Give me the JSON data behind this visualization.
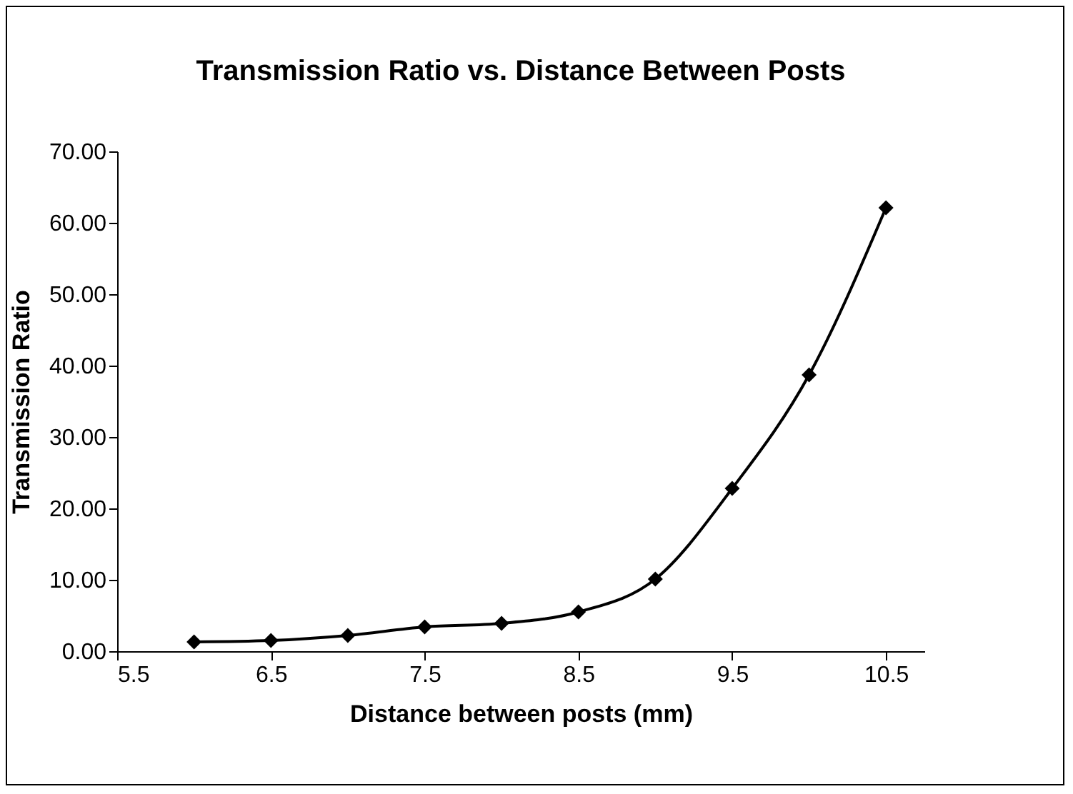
{
  "chart_data": {
    "type": "line",
    "title": "Transmission Ratio vs. Distance Between Posts",
    "xlabel": "Distance between posts (mm)",
    "ylabel": "Transmission Ratio",
    "x": [
      6,
      6.5,
      7,
      7.5,
      8,
      8.5,
      9,
      9.5,
      10,
      10.5
    ],
    "series": [
      {
        "color": "#000000",
        "values": [
          1.3,
          1.5,
          2.2,
          3.4,
          3.9,
          5.5,
          10.1,
          22.8,
          38.7,
          62.1
        ]
      }
    ],
    "xlim": [
      5.5,
      10.75
    ],
    "xticks": [
      {
        "value": 5.5,
        "label": "5.5"
      },
      {
        "value": 6.5,
        "label": "6.5"
      },
      {
        "value": 7.5,
        "label": "7.5"
      },
      {
        "value": 8.5,
        "label": "8.5"
      },
      {
        "value": 9.5,
        "label": "9.5"
      },
      {
        "value": 10.5,
        "label": "10.5"
      }
    ],
    "ylim": [
      0,
      70
    ],
    "yticks": [
      {
        "value": 0,
        "label": "0.00"
      },
      {
        "value": 10,
        "label": "10.00"
      },
      {
        "value": 20,
        "label": "20.00"
      },
      {
        "value": 30,
        "label": "30.00"
      },
      {
        "value": 40,
        "label": "40.00"
      },
      {
        "value": 50,
        "label": "50.00"
      },
      {
        "value": 60,
        "label": "60.00"
      },
      {
        "value": 70,
        "label": "70.00"
      }
    ],
    "marker": "diamond",
    "line_style": "solid"
  }
}
